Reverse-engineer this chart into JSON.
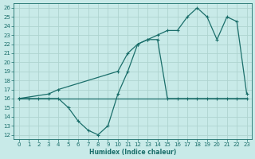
{
  "xlabel": "Humidex (Indice chaleur)",
  "bg_color": "#c8eae8",
  "grid_color": "#b0d8d4",
  "line_color": "#1a6e6a",
  "xlim": [
    -0.5,
    23.5
  ],
  "ylim": [
    11.5,
    26.5
  ],
  "yticks": [
    12,
    13,
    14,
    15,
    16,
    17,
    18,
    19,
    20,
    21,
    22,
    23,
    24,
    25,
    26
  ],
  "xticks": [
    0,
    1,
    2,
    3,
    4,
    5,
    6,
    7,
    8,
    9,
    10,
    11,
    12,
    13,
    14,
    15,
    16,
    17,
    18,
    19,
    20,
    21,
    22,
    23
  ],
  "line_wavy_x": [
    0,
    1,
    2,
    3,
    4,
    5,
    6,
    7,
    8,
    9,
    10,
    11,
    12,
    13,
    14,
    15,
    16,
    17,
    18,
    19,
    20,
    21,
    22,
    23
  ],
  "line_wavy_y": [
    16,
    16,
    16,
    16,
    16,
    15,
    13.5,
    12.5,
    12,
    13,
    16.5,
    19,
    22,
    22.5,
    22.5,
    16,
    16,
    16,
    16,
    16,
    16,
    16,
    16,
    16
  ],
  "line_flat_x": [
    0,
    1,
    2,
    3,
    4,
    5,
    6,
    7,
    8,
    9,
    10,
    11,
    12,
    13,
    14,
    15,
    16,
    17,
    18,
    19,
    20,
    21,
    22,
    23
  ],
  "line_flat_y": [
    16,
    16,
    16,
    16,
    16,
    16,
    16,
    16,
    16,
    16,
    16,
    16,
    16,
    16,
    16,
    16,
    16,
    16,
    16,
    16,
    16,
    16,
    16,
    16
  ],
  "line_diag_x": [
    0,
    3,
    4,
    10,
    11,
    12,
    13,
    14,
    15,
    16,
    17,
    18,
    19,
    20,
    21,
    22,
    23
  ],
  "line_diag_y": [
    16,
    16.5,
    17,
    19,
    21,
    22,
    22.5,
    23,
    23.5,
    23.5,
    25,
    26,
    25,
    22.5,
    25,
    24.5,
    16.5
  ]
}
